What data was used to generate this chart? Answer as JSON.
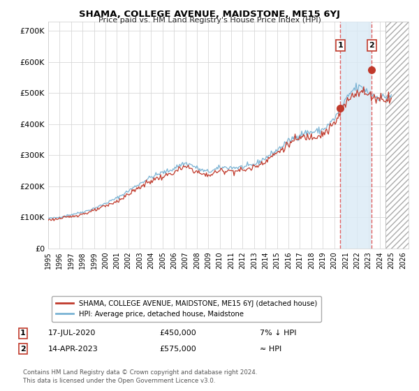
{
  "title": "SHAMA, COLLEGE AVENUE, MAIDSTONE, ME15 6YJ",
  "subtitle": "Price paid vs. HM Land Registry's House Price Index (HPI)",
  "ylabel_ticks": [
    "£0",
    "£100K",
    "£200K",
    "£300K",
    "£400K",
    "£500K",
    "£600K",
    "£700K"
  ],
  "ytick_values": [
    0,
    100000,
    200000,
    300000,
    400000,
    500000,
    600000,
    700000
  ],
  "ylim": [
    0,
    730000
  ],
  "xlim_start": 1995.0,
  "xlim_end": 2026.5,
  "hpi_color": "#7ab3d4",
  "price_color": "#c0392b",
  "shade_between_lines_color": "#ddeeff",
  "marker1_year": 2020.54,
  "marker1_price": 450000,
  "marker2_year": 2023.29,
  "marker2_price": 575000,
  "dashed_line_color": "#e05050",
  "shade_region_color": "#daeaf5",
  "hatch_start": 2024.5,
  "legend_label1": "SHAMA, COLLEGE AVENUE, MAIDSTONE, ME15 6YJ (detached house)",
  "legend_label2": "HPI: Average price, detached house, Maidstone",
  "annotation1_date": "17-JUL-2020",
  "annotation1_price": "£450,000",
  "annotation1_hpi": "7% ↓ HPI",
  "annotation2_date": "14-APR-2023",
  "annotation2_price": "£575,000",
  "annotation2_hpi": "≈ HPI",
  "footer": "Contains HM Land Registry data © Crown copyright and database right 2024.\nThis data is licensed under the Open Government Licence v3.0.",
  "background_color": "#ffffff",
  "grid_color": "#d8d8d8"
}
